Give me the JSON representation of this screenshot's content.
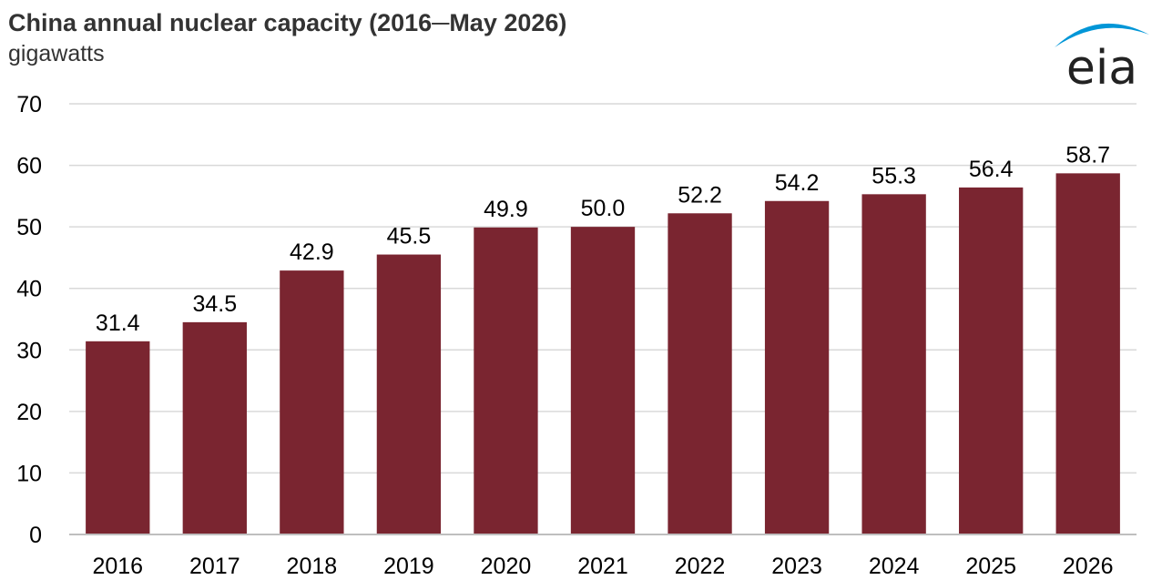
{
  "header": {
    "title": "China annual nuclear capacity (2016─May 2026)",
    "subtitle": "gigawatts"
  },
  "logo": {
    "text": "eia",
    "arc_color": "#0096d7",
    "text_color": "#222222"
  },
  "chart_data": {
    "type": "bar",
    "title": "China annual nuclear capacity (2016─May 2026)",
    "ylabel": "gigawatts",
    "xlabel": "",
    "categories": [
      "2016",
      "2017",
      "2018",
      "2019",
      "2020",
      "2021",
      "2022",
      "2023",
      "2024",
      "2025",
      "2026"
    ],
    "values": [
      31.4,
      34.5,
      42.9,
      45.5,
      49.9,
      50.0,
      52.2,
      54.2,
      55.3,
      56.4,
      58.7
    ],
    "value_labels": [
      "31.4",
      "34.5",
      "42.9",
      "45.5",
      "49.9",
      "50.0",
      "52.2",
      "54.2",
      "55.3",
      "56.4",
      "58.7"
    ],
    "yticks": [
      0,
      10,
      20,
      30,
      40,
      50,
      60,
      70
    ],
    "ylim": [
      0,
      70
    ],
    "grid": true,
    "legend": "none",
    "bar_color": "#7a2530"
  }
}
